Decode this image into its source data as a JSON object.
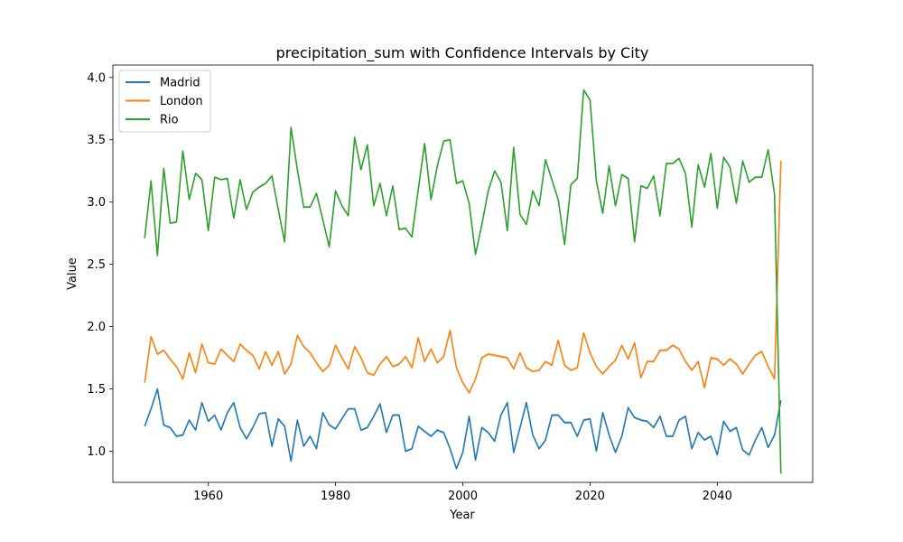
{
  "chart_data": {
    "type": "line",
    "title": "precipitation_sum with Confidence Intervals by City",
    "xlabel": "Year",
    "ylabel": "Value",
    "xlim": [
      1945,
      2055
    ],
    "ylim": [
      0.75,
      4.1
    ],
    "xticks": [
      1960,
      1980,
      2000,
      2020,
      2040
    ],
    "yticks": [
      1.0,
      1.5,
      2.0,
      2.5,
      3.0,
      3.5,
      4.0
    ],
    "ytick_labels": [
      "1.0",
      "1.5",
      "2.0",
      "2.5",
      "3.0",
      "3.5",
      "4.0"
    ],
    "grid": false,
    "legend_position": "top-left",
    "x_start": 1950,
    "x_end": 2050,
    "series": [
      {
        "name": "Madrid",
        "color": "#1f77b4",
        "values": [
          1.2,
          1.34,
          1.5,
          1.21,
          1.19,
          1.12,
          1.13,
          1.25,
          1.17,
          1.39,
          1.24,
          1.29,
          1.17,
          1.31,
          1.39,
          1.19,
          1.1,
          1.19,
          1.3,
          1.31,
          1.04,
          1.26,
          1.2,
          0.92,
          1.25,
          1.04,
          1.12,
          1.02,
          1.31,
          1.21,
          1.18,
          1.26,
          1.34,
          1.34,
          1.17,
          1.19,
          1.28,
          1.38,
          1.15,
          1.29,
          1.29,
          1.0,
          1.02,
          1.2,
          1.16,
          1.12,
          1.17,
          1.15,
          1.02,
          0.86,
          0.99,
          1.28,
          0.93,
          1.19,
          1.15,
          1.08,
          1.29,
          1.39,
          0.99,
          1.19,
          1.39,
          1.13,
          1.02,
          1.09,
          1.29,
          1.29,
          1.23,
          1.23,
          1.12,
          1.25,
          1.26,
          1.0,
          1.31,
          1.13,
          0.99,
          1.12,
          1.35,
          1.27,
          1.25,
          1.24,
          1.19,
          1.28,
          1.12,
          1.12,
          1.25,
          1.28,
          1.02,
          1.15,
          1.09,
          1.12,
          0.97,
          1.24,
          1.16,
          1.19,
          1.01,
          0.97,
          1.09,
          1.19,
          1.03,
          1.13,
          1.41
        ]
      },
      {
        "name": "London",
        "color": "#ff7f0e",
        "values": [
          1.55,
          1.92,
          1.78,
          1.81,
          1.74,
          1.68,
          1.58,
          1.79,
          1.63,
          1.86,
          1.71,
          1.7,
          1.82,
          1.77,
          1.72,
          1.86,
          1.81,
          1.77,
          1.66,
          1.8,
          1.69,
          1.8,
          1.62,
          1.7,
          1.93,
          1.84,
          1.79,
          1.71,
          1.64,
          1.69,
          1.85,
          1.75,
          1.66,
          1.84,
          1.75,
          1.63,
          1.61,
          1.7,
          1.76,
          1.68,
          1.7,
          1.76,
          1.67,
          1.91,
          1.72,
          1.82,
          1.71,
          1.76,
          1.97,
          1.67,
          1.55,
          1.47,
          1.58,
          1.75,
          1.78,
          1.77,
          1.76,
          1.75,
          1.66,
          1.79,
          1.67,
          1.64,
          1.65,
          1.72,
          1.69,
          1.89,
          1.69,
          1.65,
          1.67,
          1.95,
          1.79,
          1.68,
          1.62,
          1.68,
          1.73,
          1.85,
          1.74,
          1.87,
          1.59,
          1.72,
          1.72,
          1.81,
          1.81,
          1.85,
          1.82,
          1.72,
          1.65,
          1.72,
          1.51,
          1.75,
          1.74,
          1.69,
          1.74,
          1.7,
          1.62,
          1.7,
          1.77,
          1.8,
          1.68,
          1.58,
          3.33
        ]
      },
      {
        "name": "Rio",
        "color": "#2ca02c",
        "values": [
          2.71,
          3.17,
          2.57,
          3.27,
          2.83,
          2.84,
          3.41,
          3.02,
          3.23,
          3.18,
          2.77,
          3.2,
          3.18,
          3.19,
          2.87,
          3.18,
          2.94,
          3.08,
          3.12,
          3.15,
          3.21,
          2.94,
          2.68,
          3.6,
          3.26,
          2.96,
          2.96,
          3.07,
          2.86,
          2.64,
          3.09,
          2.97,
          2.89,
          3.52,
          3.26,
          3.46,
          2.97,
          3.15,
          2.89,
          3.13,
          2.78,
          2.79,
          2.72,
          3.1,
          3.47,
          3.02,
          3.29,
          3.49,
          3.5,
          3.15,
          3.17,
          2.99,
          2.58,
          2.82,
          3.09,
          3.25,
          3.16,
          2.77,
          3.44,
          2.9,
          2.82,
          3.09,
          2.97,
          3.34,
          3.18,
          3.02,
          2.66,
          3.14,
          3.19,
          3.9,
          3.82,
          3.17,
          2.91,
          3.29,
          2.97,
          3.22,
          3.19,
          2.68,
          3.13,
          3.11,
          3.21,
          2.89,
          3.31,
          3.31,
          3.35,
          3.23,
          2.8,
          3.3,
          3.12,
          3.39,
          2.95,
          3.36,
          3.28,
          2.99,
          3.33,
          3.16,
          3.2,
          3.2,
          3.42,
          3.06,
          0.82
        ]
      }
    ]
  }
}
